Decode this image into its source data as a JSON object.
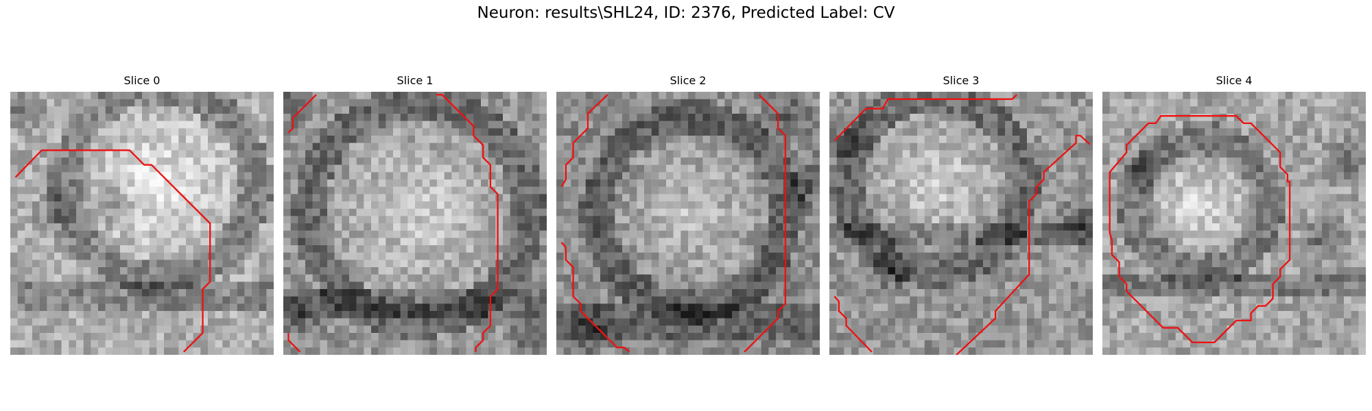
{
  "figure": {
    "title": "Neuron: results\\SHL24, ID: 2376, Predicted Label: CV",
    "contour_color": "#ee1111"
  },
  "panels": [
    {
      "title": "Slice 0",
      "contours": [
        [
          [
            0.7,
            11.7
          ],
          [
            4.3,
            8.0
          ],
          [
            16.3,
            8.0
          ],
          [
            18.3,
            10.0
          ],
          [
            19.3,
            10.0
          ],
          [
            27.3,
            18.0
          ],
          [
            27.3,
            26.0
          ],
          [
            26.3,
            27.0
          ],
          [
            26.3,
            33.0
          ],
          [
            23.7,
            35.6
          ]
        ]
      ]
    },
    {
      "title": "Slice 1",
      "contours": [
        [
          [
            4.5,
            0.4
          ],
          [
            1.3,
            3.6
          ],
          [
            1.3,
            5.0
          ],
          [
            0.7,
            5.6
          ]
        ],
        [
          [
            20.9,
            0.4
          ],
          [
            21.7,
            0.4
          ],
          [
            26.0,
            4.7
          ],
          [
            26.0,
            6.0
          ],
          [
            27.3,
            7.3
          ],
          [
            27.3,
            9.0
          ],
          [
            28.3,
            10.0
          ],
          [
            28.3,
            13.0
          ],
          [
            29.3,
            14.0
          ],
          [
            29.3,
            27.0
          ],
          [
            28.3,
            28.0
          ],
          [
            28.3,
            32.0
          ],
          [
            27.3,
            33.0
          ],
          [
            27.3,
            34.0
          ],
          [
            26.3,
            35.0
          ],
          [
            26.3,
            35.6
          ]
        ],
        [
          [
            0.7,
            33.0
          ],
          [
            0.7,
            34.0
          ],
          [
            2.3,
            35.6
          ]
        ]
      ]
    },
    {
      "title": "Slice 2",
      "contours": [
        [
          [
            7.0,
            0.4
          ],
          [
            4.3,
            3.0
          ],
          [
            4.3,
            5.0
          ],
          [
            2.3,
            7.0
          ],
          [
            2.3,
            9.0
          ],
          [
            1.3,
            10.0
          ],
          [
            1.3,
            12.0
          ],
          [
            0.7,
            13.0
          ]
        ],
        [
          [
            27.7,
            0.4
          ],
          [
            30.3,
            3.0
          ],
          [
            30.3,
            5.0
          ],
          [
            31.3,
            6.0
          ],
          [
            31.3,
            29.0
          ],
          [
            30.3,
            30.0
          ],
          [
            30.3,
            31.0
          ],
          [
            25.7,
            35.6
          ]
        ],
        [
          [
            0.7,
            20.6
          ],
          [
            1.3,
            21.3
          ],
          [
            1.3,
            23.0
          ],
          [
            2.3,
            24.0
          ],
          [
            2.3,
            28.0
          ],
          [
            3.3,
            29.0
          ],
          [
            3.3,
            30.0
          ],
          [
            8.3,
            35.0
          ],
          [
            9.3,
            35.0
          ],
          [
            10.0,
            35.6
          ]
        ]
      ]
    },
    {
      "title": "Slice 3",
      "contours": [
        [
          [
            0.7,
            6.7
          ],
          [
            5.0,
            2.3
          ],
          [
            7.3,
            2.3
          ],
          [
            8.0,
            1.0
          ],
          [
            25.0,
            1.0
          ],
          [
            25.6,
            0.4
          ]
        ],
        [
          [
            35.6,
            7.2
          ],
          [
            34.3,
            6.0
          ],
          [
            33.7,
            6.0
          ],
          [
            33.7,
            7.0
          ],
          [
            29.3,
            11.0
          ],
          [
            29.3,
            12.0
          ],
          [
            28.3,
            13.0
          ],
          [
            28.3,
            14.0
          ],
          [
            27.3,
            15.0
          ],
          [
            27.3,
            25.0
          ],
          [
            22.7,
            30.0
          ],
          [
            22.7,
            31.0
          ],
          [
            16.3,
            37.0
          ]
        ],
        [
          [
            0.7,
            28.0
          ],
          [
            1.3,
            28.7
          ],
          [
            1.3,
            30.0
          ],
          [
            2.3,
            31.0
          ],
          [
            2.3,
            32.0
          ],
          [
            5.8,
            35.6
          ]
        ]
      ]
    },
    {
      "title": "Slice 4",
      "contours": [
        [
          [
            6.8,
            4.3
          ],
          [
            7.3,
            4.3
          ],
          [
            8.0,
            3.3
          ],
          [
            18.3,
            3.3
          ],
          [
            19.3,
            4.3
          ],
          [
            20.3,
            4.3
          ],
          [
            24.3,
            8.3
          ],
          [
            24.3,
            10.3
          ],
          [
            25.3,
            11.3
          ],
          [
            25.3,
            12.3
          ],
          [
            25.6,
            12.3
          ],
          [
            25.6,
            23.0
          ],
          [
            24.3,
            24.3
          ],
          [
            24.3,
            25.3
          ],
          [
            23.3,
            26.3
          ],
          [
            23.3,
            28.3
          ],
          [
            22.3,
            29.3
          ],
          [
            21.3,
            29.3
          ],
          [
            20.3,
            30.3
          ],
          [
            20.3,
            31.3
          ],
          [
            18.3,
            31.3
          ],
          [
            15.3,
            34.3
          ],
          [
            12.3,
            34.3
          ],
          [
            10.3,
            32.3
          ],
          [
            8.3,
            32.3
          ],
          [
            3.3,
            27.3
          ],
          [
            3.3,
            26.3
          ],
          [
            2.3,
            25.3
          ],
          [
            2.3,
            23.3
          ],
          [
            1.3,
            22.3
          ],
          [
            1.3,
            20.3
          ],
          [
            1.0,
            19.3
          ],
          [
            1.0,
            11.0
          ],
          [
            3.3,
            8.3
          ],
          [
            3.3,
            7.3
          ],
          [
            6.3,
            4.3
          ],
          [
            6.8,
            4.3
          ]
        ]
      ]
    }
  ]
}
